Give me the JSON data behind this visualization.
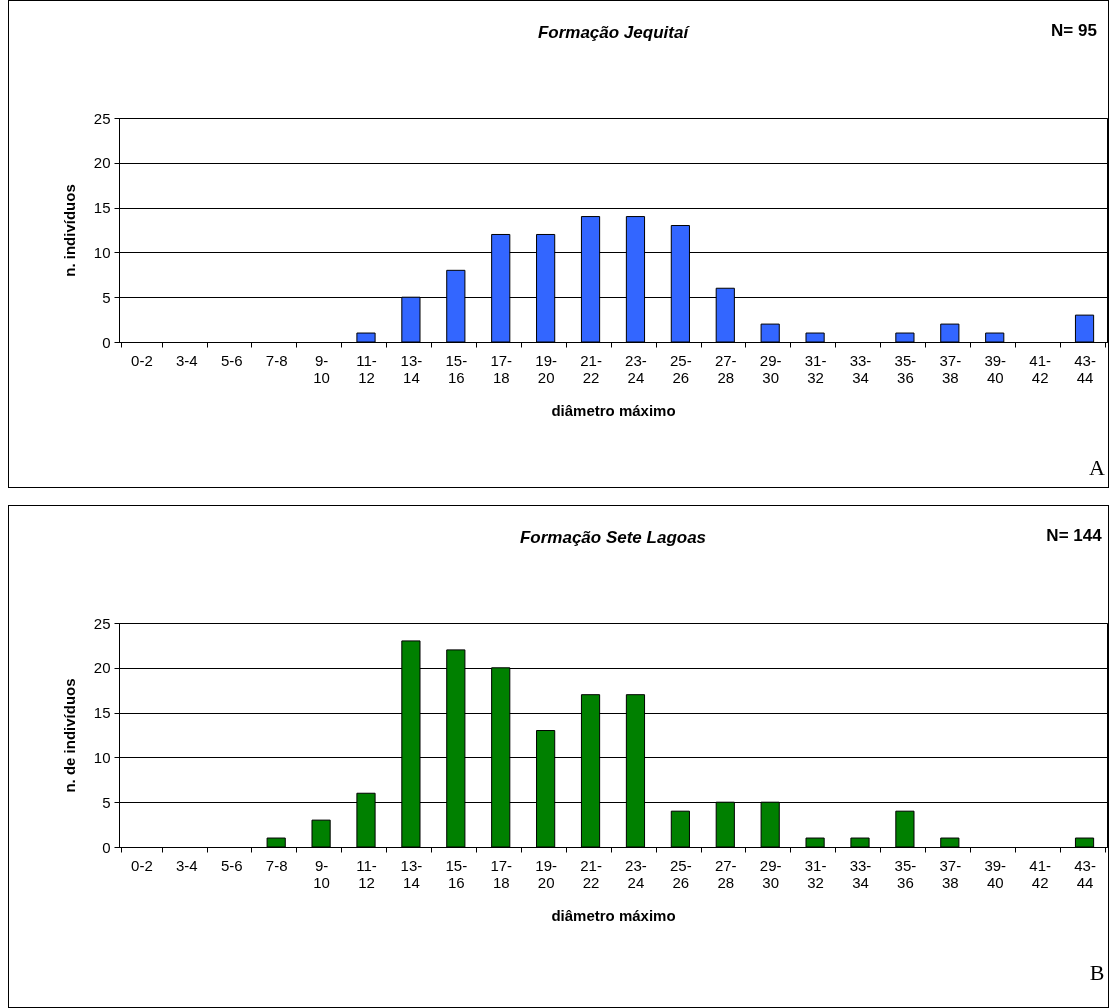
{
  "chart_data": [
    {
      "type": "bar",
      "title": "Formação Jequitaí",
      "xlabel": "diâmetro máximo",
      "ylabel": "n. indivíduos",
      "categories": [
        "0-2",
        "3-4",
        "5-6",
        "7-8",
        "9-10",
        "11-12",
        "13-14",
        "15-16",
        "17-18",
        "19-20",
        "21-22",
        "23-24",
        "25-26",
        "27-28",
        "29-30",
        "31-32",
        "33-34",
        "35-36",
        "37-38",
        "39-40",
        "41-42",
        "43-44"
      ],
      "values": [
        0,
        0,
        0,
        0,
        0,
        1,
        5,
        8,
        12,
        12,
        14,
        14,
        13,
        6,
        2,
        1,
        0,
        1,
        2,
        1,
        0,
        3
      ],
      "color": "#3366ff",
      "ylim": [
        0,
        25
      ],
      "yticks": [
        0,
        5,
        10,
        15,
        20,
        25
      ],
      "grid": "y",
      "annotations": [
        "N= 95",
        "A"
      ]
    },
    {
      "type": "bar",
      "title": "Formação Sete Lagoas",
      "xlabel": "diâmetro máximo",
      "ylabel": "n. de indivíduos",
      "categories": [
        "0-2",
        "3-4",
        "5-6",
        "7-8",
        "9-10",
        "11-12",
        "13-14",
        "15-16",
        "17-18",
        "19-20",
        "21-22",
        "23-24",
        "25-26",
        "27-28",
        "29-30",
        "31-32",
        "33-34",
        "35-36",
        "37-38",
        "39-40",
        "41-42",
        "43-44"
      ],
      "values": [
        0,
        0,
        0,
        1,
        3,
        6,
        23,
        22,
        20,
        13,
        17,
        17,
        4,
        5,
        5,
        1,
        1,
        4,
        1,
        0,
        0,
        1
      ],
      "color": "#008000",
      "ylim": [
        0,
        25
      ],
      "yticks": [
        0,
        5,
        10,
        15,
        20,
        25
      ],
      "grid": "y",
      "annotations": [
        "N= 144",
        "B"
      ]
    }
  ]
}
